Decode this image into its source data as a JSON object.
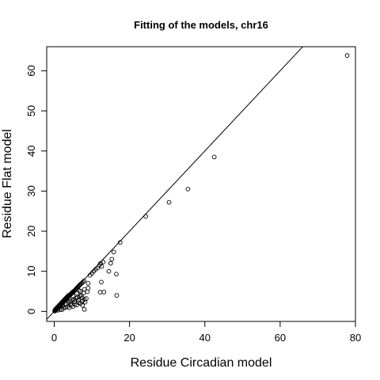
{
  "chart_data": {
    "type": "scatter",
    "title": "Fitting of the models, chr16",
    "xlabel": "Residue Circadian model",
    "ylabel": "Residue Flat model",
    "xlim": [
      -2,
      80
    ],
    "ylim": [
      -2.5,
      66
    ],
    "xticks": [
      0,
      20,
      40,
      60,
      80
    ],
    "yticks": [
      0,
      10,
      20,
      30,
      40,
      50,
      60
    ],
    "grid": false,
    "legend": "none",
    "reference_line": {
      "slope": 1,
      "intercept": 0
    },
    "marker": "open-circle",
    "colors": {
      "points": "#000000",
      "line": "#000000",
      "frame": "#000000"
    },
    "points": [
      [
        0.1,
        0.1
      ],
      [
        0.2,
        0.1
      ],
      [
        0.3,
        0.2
      ],
      [
        0.2,
        0.3
      ],
      [
        0.4,
        0.3
      ],
      [
        0.5,
        0.4
      ],
      [
        0.3,
        0.5
      ],
      [
        0.6,
        0.5
      ],
      [
        0.7,
        0.6
      ],
      [
        0.5,
        0.7
      ],
      [
        0.8,
        0.7
      ],
      [
        0.9,
        0.8
      ],
      [
        1.0,
        0.9
      ],
      [
        0.8,
        1.0
      ],
      [
        1.1,
        1.0
      ],
      [
        1.2,
        1.1
      ],
      [
        1.0,
        1.2
      ],
      [
        1.3,
        1.2
      ],
      [
        1.4,
        1.3
      ],
      [
        1.5,
        1.4
      ],
      [
        1.3,
        1.5
      ],
      [
        1.6,
        1.5
      ],
      [
        1.7,
        1.6
      ],
      [
        1.5,
        1.7
      ],
      [
        1.8,
        1.7
      ],
      [
        1.9,
        1.8
      ],
      [
        2.0,
        1.9
      ],
      [
        1.8,
        2.0
      ],
      [
        2.1,
        2.0
      ],
      [
        2.2,
        2.1
      ],
      [
        2.0,
        2.2
      ],
      [
        2.3,
        2.2
      ],
      [
        2.4,
        2.3
      ],
      [
        2.5,
        2.4
      ],
      [
        2.3,
        2.5
      ],
      [
        2.6,
        2.5
      ],
      [
        2.7,
        2.6
      ],
      [
        2.8,
        2.7
      ],
      [
        2.6,
        2.8
      ],
      [
        2.9,
        2.8
      ],
      [
        3.0,
        2.9
      ],
      [
        3.1,
        3.0
      ],
      [
        2.9,
        3.1
      ],
      [
        3.2,
        3.1
      ],
      [
        3.3,
        3.2
      ],
      [
        3.4,
        3.3
      ],
      [
        3.2,
        3.4
      ],
      [
        3.5,
        3.4
      ],
      [
        3.6,
        3.5
      ],
      [
        3.7,
        3.6
      ],
      [
        3.5,
        3.7
      ],
      [
        3.8,
        3.7
      ],
      [
        3.9,
        3.8
      ],
      [
        4.0,
        3.9
      ],
      [
        3.8,
        4.0
      ],
      [
        4.1,
        4.0
      ],
      [
        4.2,
        4.1
      ],
      [
        4.3,
        4.2
      ],
      [
        4.4,
        4.3
      ],
      [
        4.5,
        4.4
      ],
      [
        4.6,
        4.5
      ],
      [
        4.7,
        4.6
      ],
      [
        4.8,
        4.7
      ],
      [
        4.9,
        4.8
      ],
      [
        5.0,
        4.9
      ],
      [
        5.2,
        5.0
      ],
      [
        5.4,
        5.2
      ],
      [
        5.6,
        5.4
      ],
      [
        5.8,
        5.6
      ],
      [
        6.0,
        5.8
      ],
      [
        6.2,
        6.0
      ],
      [
        6.4,
        6.2
      ],
      [
        6.6,
        6.4
      ],
      [
        6.8,
        6.6
      ],
      [
        7.0,
        6.8
      ],
      [
        7.3,
        7.0
      ],
      [
        7.6,
        7.3
      ],
      [
        7.9,
        7.6
      ],
      [
        1.0,
        0.3
      ],
      [
        1.5,
        0.5
      ],
      [
        2.0,
        0.4
      ],
      [
        2.5,
        0.8
      ],
      [
        3.0,
        1.0
      ],
      [
        3.5,
        1.2
      ],
      [
        4.0,
        0.9
      ],
      [
        4.5,
        1.5
      ],
      [
        5.0,
        1.2
      ],
      [
        5.5,
        1.8
      ],
      [
        6.0,
        1.6
      ],
      [
        6.5,
        2.2
      ],
      [
        7.0,
        2.0
      ],
      [
        7.5,
        2.6
      ],
      [
        8.0,
        3.0
      ],
      [
        8.5,
        3.2
      ],
      [
        4.2,
        2.5
      ],
      [
        5.2,
        3.0
      ],
      [
        6.2,
        3.5
      ],
      [
        7.2,
        4.0
      ],
      [
        3.8,
        2.2
      ],
      [
        4.8,
        2.8
      ],
      [
        5.8,
        3.3
      ],
      [
        6.8,
        3.8
      ],
      [
        2.2,
        1.4
      ],
      [
        3.2,
        1.8
      ],
      [
        4.4,
        2.0
      ],
      [
        5.4,
        2.4
      ],
      [
        6.4,
        2.8
      ],
      [
        7.4,
        3.4
      ],
      [
        5.0,
        3.8
      ],
      [
        6.0,
        4.5
      ],
      [
        7.0,
        5.0
      ],
      [
        8.0,
        5.5
      ],
      [
        9.0,
        5.8
      ],
      [
        7.8,
        4.6
      ],
      [
        6.6,
        5.2
      ],
      [
        8.8,
        4.9
      ],
      [
        8.0,
        0.5
      ],
      [
        7.5,
        1.5
      ],
      [
        8.2,
        2.3
      ],
      [
        9.0,
        7.0
      ],
      [
        9.5,
        9.0
      ],
      [
        10.0,
        9.5
      ],
      [
        10.5,
        10.0
      ],
      [
        11.0,
        10.5
      ],
      [
        11.5,
        10.8
      ],
      [
        12.0,
        11.5
      ],
      [
        12.3,
        12.0
      ],
      [
        12.6,
        11.2
      ],
      [
        13.0,
        12.3
      ],
      [
        12.2,
        4.8
      ],
      [
        13.2,
        4.8
      ],
      [
        12.5,
        7.3
      ],
      [
        14.5,
        10.0
      ],
      [
        15.0,
        12.0
      ],
      [
        15.3,
        13.0
      ],
      [
        15.8,
        14.8
      ],
      [
        16.5,
        9.3
      ],
      [
        16.6,
        4.0
      ],
      [
        17.5,
        17.2
      ],
      [
        24.3,
        23.7
      ],
      [
        30.5,
        27.2
      ],
      [
        35.5,
        30.5
      ],
      [
        42.5,
        38.5
      ],
      [
        77.8,
        63.8
      ]
    ]
  }
}
